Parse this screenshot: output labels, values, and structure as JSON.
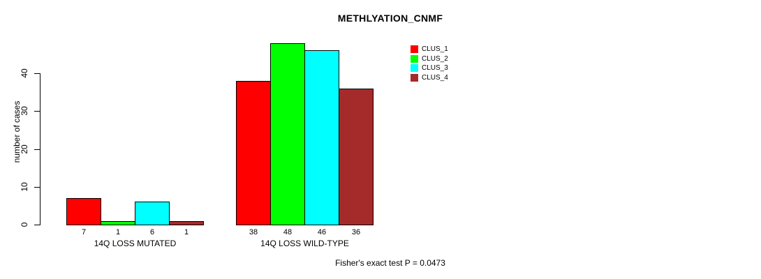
{
  "chart_data": {
    "type": "bar",
    "title": "METHLYATION_CNMF",
    "ylabel": "number of cases",
    "xlabel": "",
    "ylim": [
      0,
      48
    ],
    "yticks": [
      0,
      10,
      20,
      30,
      40
    ],
    "grid": false,
    "legend_position": "top-right",
    "categories": [
      "14Q LOSS MUTATED",
      "14Q LOSS WILD-TYPE"
    ],
    "series": [
      {
        "name": "CLUS_1",
        "color": "#FF0000",
        "values": [
          7,
          38
        ]
      },
      {
        "name": "CLUS_2",
        "color": "#00FF00",
        "values": [
          1,
          48
        ]
      },
      {
        "name": "CLUS_3",
        "color": "#00FFFF",
        "values": [
          6,
          46
        ]
      },
      {
        "name": "CLUS_4",
        "color": "#A52A2A",
        "values": [
          1,
          36
        ]
      }
    ],
    "bar_value_labels_shown": true,
    "annotation": "Fisher's exact test P = 0.0473"
  }
}
